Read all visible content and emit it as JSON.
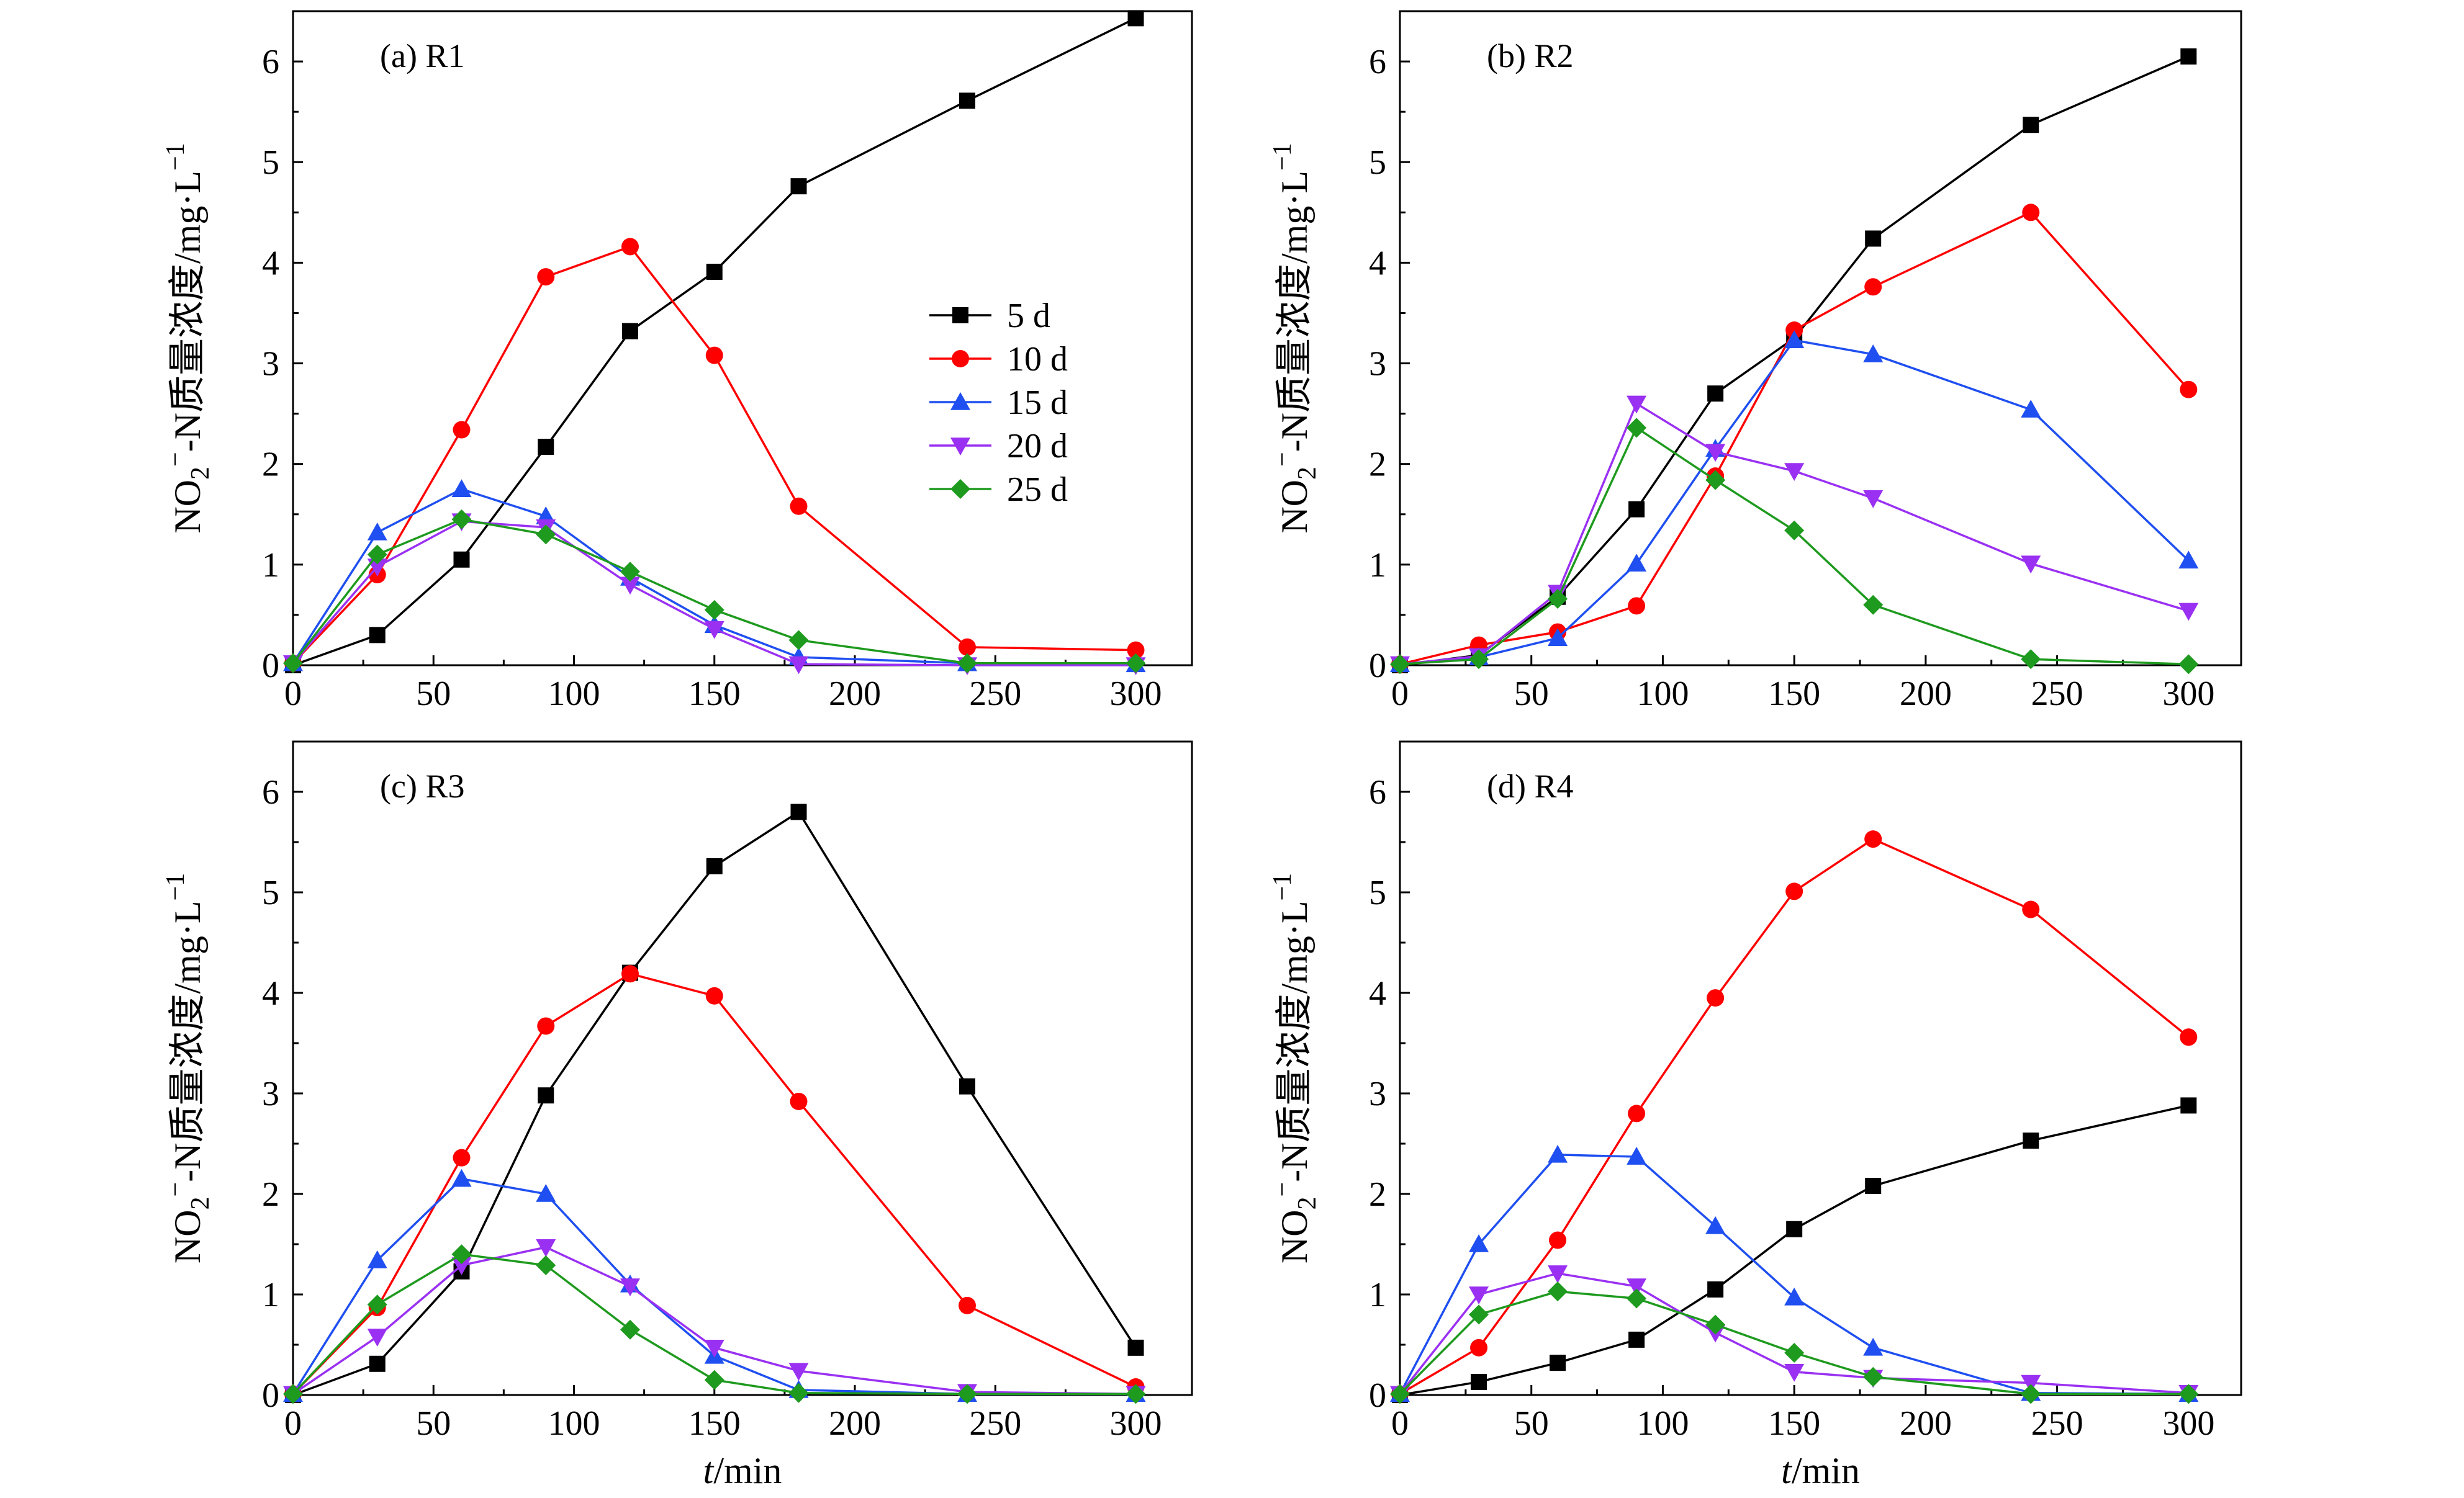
{
  "colors": {
    "5 d": "#000000",
    "10 d": "#ff0000",
    "15 d": "#1f4ff0",
    "20 d": "#9a31f2",
    "25 d": "#1e9a1e"
  },
  "markers": {
    "5 d": "square",
    "10 d": "circle",
    "15 d": "triangle-up",
    "20 d": "triangle-down",
    "25 d": "diamond"
  },
  "legend": {
    "entries": [
      "5 d",
      "10 d",
      "15 d",
      "20 d",
      "25 d"
    ]
  },
  "shared_axes": {
    "xlabel_italic": "t",
    "xlabel_rest": "/min",
    "ylabel_main": "NO",
    "ylabel_sub": "2",
    "ylabel_sup_ion": "−",
    "ylabel_tail": "-N质量浓度/mg·L",
    "ylabel_sup_unit": "−1"
  },
  "chart_data": [
    {
      "type": "line",
      "panel_label": "(a) R1",
      "xlim": [
        0,
        320
      ],
      "ylim": [
        0,
        6.5
      ],
      "xticks": [
        0,
        50,
        100,
        150,
        200,
        250,
        300
      ],
      "yticks": [
        0,
        1,
        2,
        3,
        4,
        5,
        6
      ],
      "show_legend": true,
      "series": [
        {
          "name": "5 d",
          "x": [
            0,
            30,
            60,
            90,
            120,
            150,
            180,
            240,
            300
          ],
          "y": [
            0.0,
            0.3,
            1.05,
            2.17,
            3.32,
            3.91,
            4.76,
            5.61,
            6.43
          ]
        },
        {
          "name": "10 d",
          "x": [
            0,
            30,
            60,
            90,
            120,
            150,
            180,
            240,
            300
          ],
          "y": [
            0.02,
            0.9,
            2.34,
            3.86,
            4.16,
            3.08,
            1.58,
            0.18,
            0.15
          ]
        },
        {
          "name": "15 d",
          "x": [
            0,
            30,
            60,
            90,
            120,
            150,
            180,
            240,
            300
          ],
          "y": [
            0.02,
            1.32,
            1.75,
            1.48,
            0.87,
            0.4,
            0.08,
            0.02,
            0.01
          ]
        },
        {
          "name": "20 d",
          "x": [
            0,
            30,
            60,
            90,
            120,
            150,
            180,
            240,
            300
          ],
          "y": [
            0.02,
            0.98,
            1.43,
            1.37,
            0.8,
            0.36,
            0.01,
            0.0,
            0.0
          ]
        },
        {
          "name": "25 d",
          "x": [
            0,
            30,
            60,
            90,
            120,
            150,
            180,
            240,
            300
          ],
          "y": [
            0.02,
            1.1,
            1.45,
            1.3,
            0.93,
            0.55,
            0.25,
            0.02,
            0.02
          ]
        }
      ]
    },
    {
      "type": "line",
      "panel_label": "(b) R2",
      "xlim": [
        0,
        320
      ],
      "ylim": [
        0,
        6.5
      ],
      "xticks": [
        0,
        50,
        100,
        150,
        200,
        250,
        300
      ],
      "yticks": [
        0,
        1,
        2,
        3,
        4,
        5,
        6
      ],
      "show_legend": false,
      "series": [
        {
          "name": "5 d",
          "x": [
            0,
            30,
            60,
            90,
            120,
            150,
            180,
            240,
            300
          ],
          "y": [
            0.0,
            0.1,
            0.68,
            1.55,
            2.7,
            3.25,
            4.24,
            5.37,
            6.05
          ]
        },
        {
          "name": "10 d",
          "x": [
            0,
            30,
            60,
            90,
            120,
            150,
            180,
            240,
            300
          ],
          "y": [
            0.01,
            0.2,
            0.33,
            0.59,
            1.88,
            3.33,
            3.76,
            4.5,
            2.74
          ]
        },
        {
          "name": "15 d",
          "x": [
            0,
            30,
            60,
            90,
            120,
            150,
            180,
            240,
            300
          ],
          "y": [
            0.01,
            0.08,
            0.27,
            1.01,
            2.15,
            3.23,
            3.09,
            2.54,
            1.04
          ]
        },
        {
          "name": "20 d",
          "x": [
            0,
            30,
            60,
            90,
            120,
            150,
            180,
            240,
            300
          ],
          "y": [
            0.01,
            0.09,
            0.72,
            2.6,
            2.12,
            1.93,
            1.66,
            1.01,
            0.54
          ]
        },
        {
          "name": "25 d",
          "x": [
            0,
            30,
            60,
            90,
            120,
            150,
            180,
            240,
            300
          ],
          "y": [
            0.01,
            0.06,
            0.66,
            2.36,
            1.84,
            1.34,
            0.6,
            0.06,
            0.01
          ]
        }
      ]
    },
    {
      "type": "line",
      "panel_label": "(c) R3",
      "xlim": [
        0,
        320
      ],
      "ylim": [
        0,
        6.5
      ],
      "xticks": [
        0,
        50,
        100,
        150,
        200,
        250,
        300
      ],
      "yticks": [
        0,
        1,
        2,
        3,
        4,
        5,
        6
      ],
      "show_legend": false,
      "series": [
        {
          "name": "5 d",
          "x": [
            0,
            30,
            60,
            90,
            120,
            150,
            180,
            240,
            300
          ],
          "y": [
            0.0,
            0.31,
            1.23,
            2.98,
            4.2,
            5.26,
            5.8,
            3.07,
            0.47
          ]
        },
        {
          "name": "10 d",
          "x": [
            0,
            30,
            60,
            90,
            120,
            150,
            180,
            240,
            300
          ],
          "y": [
            0.01,
            0.87,
            2.36,
            3.67,
            4.19,
            3.97,
            2.92,
            0.89,
            0.08
          ]
        },
        {
          "name": "15 d",
          "x": [
            0,
            30,
            60,
            90,
            120,
            150,
            180,
            240,
            300
          ],
          "y": [
            0.01,
            1.34,
            2.15,
            2.0,
            1.1,
            0.39,
            0.05,
            0.01,
            0.01
          ]
        },
        {
          "name": "20 d",
          "x": [
            0,
            30,
            60,
            90,
            120,
            150,
            180,
            240,
            300
          ],
          "y": [
            0.01,
            0.58,
            1.29,
            1.47,
            1.08,
            0.47,
            0.24,
            0.03,
            0.01
          ]
        },
        {
          "name": "25 d",
          "x": [
            0,
            30,
            60,
            90,
            120,
            150,
            180,
            240,
            300
          ],
          "y": [
            0.01,
            0.9,
            1.4,
            1.29,
            0.65,
            0.15,
            0.02,
            0.01,
            0.01
          ]
        }
      ]
    },
    {
      "type": "line",
      "panel_label": "(d) R4",
      "xlim": [
        0,
        320
      ],
      "ylim": [
        0,
        6.5
      ],
      "xticks": [
        0,
        50,
        100,
        150,
        200,
        250,
        300
      ],
      "yticks": [
        0,
        1,
        2,
        3,
        4,
        5,
        6
      ],
      "show_legend": false,
      "series": [
        {
          "name": "5 d",
          "x": [
            0,
            30,
            60,
            90,
            120,
            150,
            180,
            240,
            300
          ],
          "y": [
            0.0,
            0.13,
            0.32,
            0.55,
            1.05,
            1.65,
            2.08,
            2.53,
            2.88
          ]
        },
        {
          "name": "10 d",
          "x": [
            0,
            30,
            60,
            90,
            120,
            150,
            180,
            240,
            300
          ],
          "y": [
            0.01,
            0.47,
            1.54,
            2.8,
            3.95,
            5.01,
            5.53,
            4.83,
            3.56
          ]
        },
        {
          "name": "15 d",
          "x": [
            0,
            30,
            60,
            90,
            120,
            150,
            180,
            240,
            300
          ],
          "y": [
            0.01,
            1.5,
            2.39,
            2.37,
            1.68,
            0.97,
            0.47,
            0.02,
            0.01
          ]
        },
        {
          "name": "20 d",
          "x": [
            0,
            30,
            60,
            90,
            120,
            150,
            180,
            240,
            300
          ],
          "y": [
            0.01,
            1.0,
            1.21,
            1.08,
            0.62,
            0.23,
            0.17,
            0.12,
            0.02
          ]
        },
        {
          "name": "25 d",
          "x": [
            0,
            30,
            60,
            90,
            120,
            150,
            180,
            240,
            300
          ],
          "y": [
            0.01,
            0.8,
            1.03,
            0.96,
            0.7,
            0.42,
            0.18,
            0.01,
            0.01
          ]
        }
      ]
    }
  ]
}
